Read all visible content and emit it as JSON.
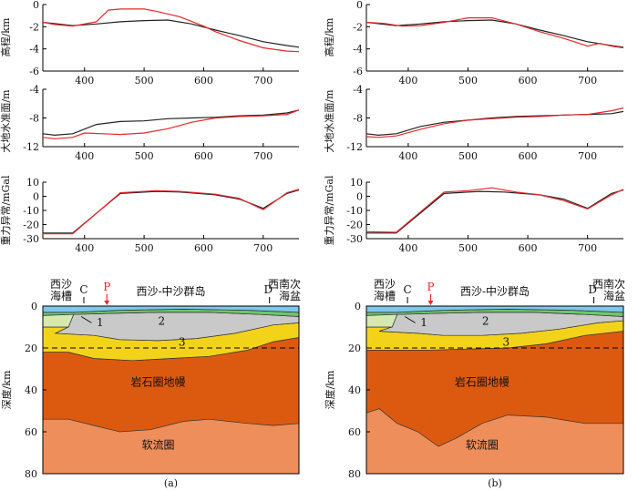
{
  "panels": [
    {
      "caption": "(a)",
      "sections": [
        {
          "id": "elev",
          "ylabel": "高程/km"
        },
        {
          "id": "geoid",
          "ylabel": "大地水准面/m"
        },
        {
          "id": "gravity",
          "ylabel": "重力异常/mGal"
        }
      ],
      "geology": {
        "region_left": "西沙\n海槽",
        "marker_c": "C",
        "marker_p": "P",
        "region_mid": "西沙-中沙群岛",
        "marker_d": "D",
        "region_right": "西南次\n海盆",
        "ylabel": "深度/km",
        "label_1": "1",
        "label_2": "2",
        "label_3": "3",
        "mantle_label": "岩石圈地幔",
        "asthenosphere_label": "软流圈"
      }
    },
    {
      "caption": "(b)",
      "sections": [
        {
          "id": "elev",
          "ylabel": "高程/km"
        },
        {
          "id": "geoid",
          "ylabel": "大地水准面/m"
        },
        {
          "id": "gravity",
          "ylabel": "重力异常/mGal"
        }
      ],
      "geology": {
        "region_left": "西沙\n海槽",
        "marker_c": "C",
        "marker_p": "P",
        "region_mid": "西沙-中沙群岛",
        "marker_d": "D",
        "region_right": "西南次\n海盆",
        "ylabel": "深度/km",
        "label_1": "1",
        "label_2": "2",
        "label_3": "3",
        "mantle_label": "岩石圈地幔",
        "asthenosphere_label": "软流圈"
      }
    }
  ],
  "chart_data": [
    {
      "type": "line",
      "panel": "a",
      "title": "",
      "xlabel": "",
      "ylabel": "高程/km",
      "xlim": [
        330,
        760
      ],
      "ylim": [
        -6,
        0
      ],
      "xticks": [
        400,
        500,
        600,
        700
      ],
      "yticks": [
        0,
        -2,
        -4,
        -6
      ],
      "series": [
        {
          "name": "observed",
          "color": "#222222",
          "x": [
            330,
            380,
            420,
            460,
            500,
            540,
            580,
            620,
            660,
            700,
            740,
            760
          ],
          "y": [
            -1.6,
            -1.9,
            -1.75,
            -1.55,
            -1.45,
            -1.4,
            -1.75,
            -2.3,
            -2.8,
            -3.35,
            -3.7,
            -3.85
          ]
        },
        {
          "name": "calculated",
          "color": "#e8262b",
          "x": [
            330,
            350,
            380,
            420,
            440,
            460,
            500,
            520,
            560,
            600,
            620,
            660,
            700,
            740,
            760
          ],
          "y": [
            -1.6,
            -1.8,
            -1.95,
            -1.55,
            -0.5,
            -0.4,
            -0.4,
            -0.6,
            -1.1,
            -1.95,
            -2.45,
            -3.25,
            -3.9,
            -4.2,
            -4.25
          ]
        }
      ]
    },
    {
      "type": "line",
      "panel": "a",
      "title": "",
      "xlabel": "",
      "ylabel": "大地水准面/m",
      "xlim": [
        330,
        760
      ],
      "ylim": [
        -12,
        -4
      ],
      "xticks": [
        400,
        500,
        600,
        700
      ],
      "yticks": [
        -4,
        -8,
        -12
      ],
      "series": [
        {
          "name": "observed",
          "color": "#222222",
          "x": [
            330,
            350,
            380,
            420,
            460,
            500,
            540,
            580,
            620,
            660,
            700,
            740,
            760
          ],
          "y": [
            -10.2,
            -10.4,
            -10.2,
            -8.9,
            -8.5,
            -8.4,
            -8.1,
            -8.0,
            -7.9,
            -7.7,
            -7.6,
            -7.3,
            -6.9
          ]
        },
        {
          "name": "calculated",
          "color": "#e8262b",
          "x": [
            330,
            350,
            380,
            400,
            460,
            500,
            540,
            580,
            620,
            660,
            700,
            740,
            760
          ],
          "y": [
            -10.7,
            -10.9,
            -10.7,
            -10.1,
            -10.3,
            -10.1,
            -9.5,
            -8.6,
            -8.0,
            -7.8,
            -7.7,
            -7.5,
            -6.9
          ]
        }
      ]
    },
    {
      "type": "line",
      "panel": "a",
      "title": "",
      "xlabel": "",
      "ylabel": "重力异常/mGal",
      "xlim": [
        330,
        760
      ],
      "ylim": [
        -30,
        10
      ],
      "xticks": [
        400,
        500,
        600,
        700
      ],
      "yticks": [
        10,
        0,
        -10,
        -20,
        -30
      ],
      "series": [
        {
          "name": "observed",
          "color": "#222222",
          "x": [
            330,
            380,
            460,
            520,
            560,
            620,
            660,
            700,
            740,
            760
          ],
          "y": [
            -26,
            -26,
            2,
            3.5,
            3,
            1,
            -2,
            -8.5,
            2,
            4.5
          ]
        },
        {
          "name": "calculated",
          "color": "#e8262b",
          "x": [
            330,
            380,
            460,
            520,
            560,
            620,
            660,
            700,
            740,
            760
          ],
          "y": [
            -26.5,
            -26.5,
            2.5,
            4,
            3.5,
            1.5,
            -1.5,
            -9.5,
            2.5,
            5
          ]
        }
      ]
    },
    {
      "type": "line",
      "panel": "b",
      "title": "",
      "xlabel": "",
      "ylabel": "高程/km",
      "xlim": [
        330,
        760
      ],
      "ylim": [
        -6,
        0
      ],
      "xticks": [
        400,
        500,
        600,
        700
      ],
      "yticks": [
        0,
        -2,
        -4,
        -6
      ],
      "series": [
        {
          "name": "observed",
          "color": "#222222",
          "x": [
            330,
            380,
            420,
            460,
            500,
            540,
            580,
            620,
            660,
            700,
            740,
            760
          ],
          "y": [
            -1.6,
            -1.9,
            -1.75,
            -1.55,
            -1.45,
            -1.4,
            -1.75,
            -2.3,
            -2.8,
            -3.35,
            -3.7,
            -3.85
          ]
        },
        {
          "name": "calculated",
          "color": "#e8262b",
          "x": [
            330,
            360,
            390,
            420,
            460,
            500,
            540,
            580,
            620,
            660,
            700,
            720,
            740,
            760
          ],
          "y": [
            -1.6,
            -1.7,
            -1.95,
            -1.9,
            -1.6,
            -1.2,
            -1.2,
            -1.75,
            -2.45,
            -3.05,
            -3.75,
            -3.5,
            -3.75,
            -3.9
          ]
        }
      ]
    },
    {
      "type": "line",
      "panel": "b",
      "title": "",
      "xlabel": "",
      "ylabel": "大地水准面/m",
      "xlim": [
        330,
        760
      ],
      "ylim": [
        -12,
        -4
      ],
      "xticks": [
        400,
        500,
        600,
        700
      ],
      "yticks": [
        -4,
        -8,
        -12
      ],
      "series": [
        {
          "name": "observed",
          "color": "#222222",
          "x": [
            330,
            350,
            380,
            420,
            460,
            500,
            540,
            580,
            620,
            660,
            700,
            740,
            760
          ],
          "y": [
            -10.2,
            -10.4,
            -10.2,
            -9.2,
            -8.6,
            -8.3,
            -8.0,
            -7.8,
            -7.7,
            -7.6,
            -7.5,
            -7.4,
            -7.1
          ]
        },
        {
          "name": "calculated",
          "color": "#e8262b",
          "x": [
            330,
            350,
            380,
            420,
            460,
            500,
            540,
            580,
            620,
            660,
            700,
            740,
            760
          ],
          "y": [
            -10.6,
            -10.7,
            -10.5,
            -9.6,
            -8.8,
            -8.3,
            -8.1,
            -7.9,
            -7.8,
            -7.6,
            -7.5,
            -7.0,
            -6.6
          ]
        }
      ]
    },
    {
      "type": "line",
      "panel": "b",
      "title": "",
      "xlabel": "",
      "ylabel": "重力异常/mGal",
      "xlim": [
        330,
        760
      ],
      "ylim": [
        -30,
        10
      ],
      "xticks": [
        400,
        500,
        600,
        700
      ],
      "yticks": [
        10,
        0,
        -10,
        -20,
        -30
      ],
      "series": [
        {
          "name": "observed",
          "color": "#222222",
          "x": [
            330,
            380,
            460,
            520,
            560,
            620,
            660,
            700,
            740,
            760
          ],
          "y": [
            -26,
            -26,
            2,
            3.5,
            3,
            1,
            -2,
            -8.5,
            2,
            4.5
          ]
        },
        {
          "name": "calculated",
          "color": "#e8262b",
          "x": [
            330,
            380,
            460,
            500,
            540,
            580,
            620,
            660,
            700,
            740,
            760
          ],
          "y": [
            -25,
            -25.5,
            3,
            4,
            6,
            3,
            1,
            -3,
            -9,
            1,
            5
          ]
        }
      ]
    }
  ]
}
